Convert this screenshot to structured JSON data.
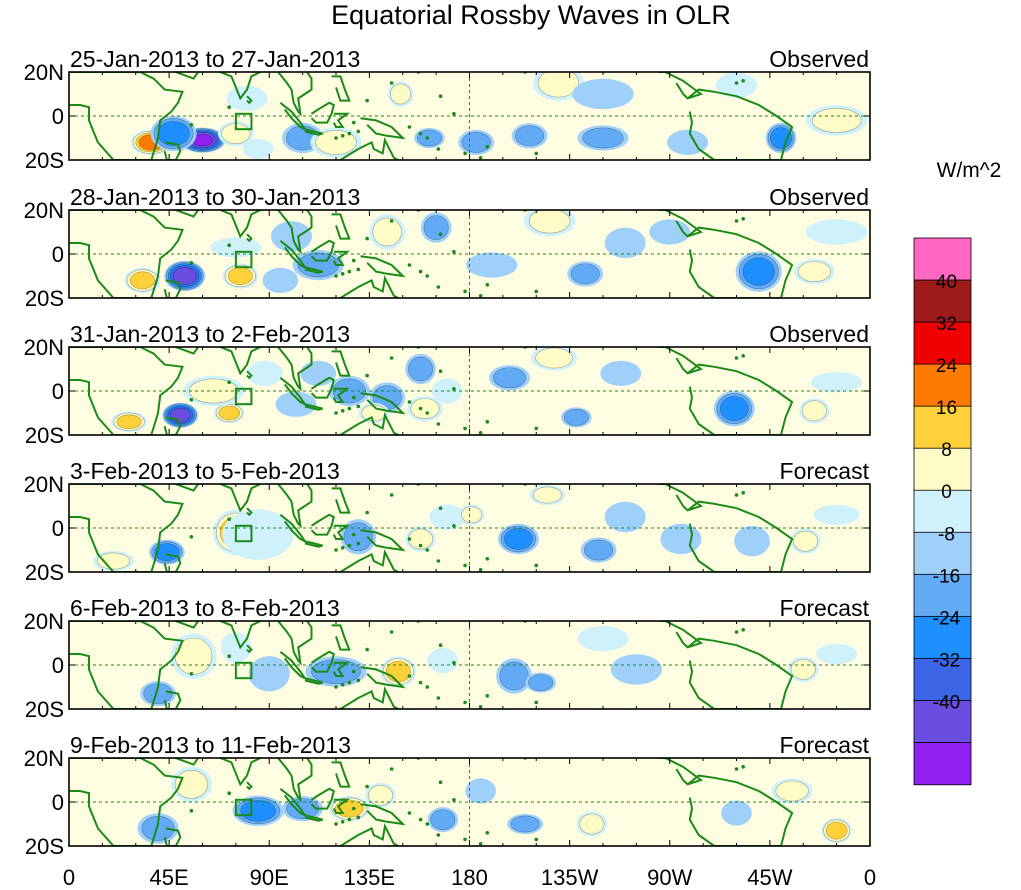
{
  "chart_data": {
    "type": "heatmap",
    "title": "Equatorial Rossby Waves in OLR",
    "colorbar_label": "W/m^2",
    "colorbar_ticks": [
      "40",
      "32",
      "24",
      "16",
      "8",
      "0",
      "-8",
      "-16",
      "-24",
      "-32",
      "-40"
    ],
    "colorbar_levels": [
      -48,
      -40,
      -32,
      -24,
      -16,
      -8,
      0,
      8,
      16,
      24,
      32,
      40,
      48
    ],
    "colors": [
      "#8f20f0",
      "#6b4ee0",
      "#3d66e6",
      "#1e8fff",
      "#63aaf5",
      "#9fd0fa",
      "#cff1fc",
      "#fffbc6",
      "#fed13a",
      "#ff7a00",
      "#f00000",
      "#9e1a1a",
      "#ff67c0"
    ],
    "x_ticks": [
      "0",
      "45E",
      "90E",
      "135E",
      "180",
      "135W",
      "90W",
      "45W",
      "0"
    ],
    "x_tick_values": [
      0,
      45,
      90,
      135,
      180,
      225,
      270,
      315,
      360
    ],
    "y_ticks": [
      "20N",
      "0",
      "20S"
    ],
    "y_tick_values": [
      20,
      0,
      -20
    ],
    "xlim": [
      0,
      360
    ],
    "ylim": [
      -20,
      20
    ],
    "panels": [
      {
        "dates": "25-Jan-2013 to 27-Jan-2013",
        "status": "Observed",
        "blobs": [
          [
            37,
            -12,
            8,
            5,
            32
          ],
          [
            60,
            -11,
            9,
            5,
            -44
          ],
          [
            47,
            -8,
            9,
            7,
            -24
          ],
          [
            75,
            -8,
            7,
            5,
            16
          ],
          [
            85,
            -15,
            6,
            4,
            8
          ],
          [
            80,
            8,
            8,
            5,
            8
          ],
          [
            105,
            -10,
            8,
            6,
            -16
          ],
          [
            120,
            -12,
            10,
            6,
            16
          ],
          [
            149,
            10,
            5,
            5,
            16
          ],
          [
            162,
            -10,
            6,
            4,
            -16
          ],
          [
            183,
            -12,
            7,
            5,
            -16
          ],
          [
            207,
            -9,
            7,
            5,
            -16
          ],
          [
            220,
            15,
            10,
            7,
            16
          ],
          [
            240,
            10,
            12,
            6,
            -8
          ],
          [
            240,
            -10,
            10,
            5,
            -16
          ],
          [
            278,
            -12,
            8,
            5,
            -8
          ],
          [
            300,
            14,
            8,
            5,
            8
          ],
          [
            320,
            -10,
            6,
            6,
            -24
          ],
          [
            345,
            -2,
            12,
            6,
            16
          ]
        ]
      },
      {
        "dates": "28-Jan-2013 to 30-Jan-2013",
        "status": "Observed",
        "blobs": [
          [
            33,
            -12,
            7,
            5,
            24
          ],
          [
            52,
            -10,
            8,
            6,
            -40
          ],
          [
            77,
            -10,
            7,
            5,
            24
          ],
          [
            75,
            3,
            10,
            4,
            8
          ],
          [
            95,
            -12,
            7,
            5,
            -8
          ],
          [
            100,
            8,
            8,
            6,
            -8
          ],
          [
            112,
            -5,
            10,
            6,
            -16
          ],
          [
            143,
            10,
            7,
            7,
            16
          ],
          [
            165,
            12,
            6,
            6,
            -16
          ],
          [
            190,
            -5,
            10,
            5,
            -8
          ],
          [
            216,
            15,
            10,
            6,
            16
          ],
          [
            232,
            -9,
            7,
            5,
            -16
          ],
          [
            250,
            5,
            8,
            6,
            -8
          ],
          [
            270,
            10,
            8,
            5,
            -8
          ],
          [
            310,
            -8,
            9,
            8,
            -24
          ],
          [
            335,
            -8,
            8,
            5,
            16
          ],
          [
            345,
            10,
            12,
            5,
            8
          ]
        ]
      },
      {
        "dates": "31-Jan-2013 to 2-Feb-2013",
        "status": "Observed",
        "blobs": [
          [
            27,
            -14,
            7,
            4,
            24
          ],
          [
            50,
            -11,
            7,
            5,
            -40
          ],
          [
            72,
            -10,
            6,
            4,
            24
          ],
          [
            65,
            0,
            12,
            6,
            16
          ],
          [
            88,
            8,
            7,
            5,
            8
          ],
          [
            102,
            -6,
            8,
            5,
            -8
          ],
          [
            112,
            8,
            7,
            5,
            -8
          ],
          [
            126,
            0,
            8,
            6,
            -16
          ],
          [
            143,
            -3,
            7,
            6,
            -16
          ],
          [
            137,
            -10,
            6,
            4,
            16
          ],
          [
            158,
            10,
            6,
            6,
            -16
          ],
          [
            160,
            -8,
            7,
            5,
            16
          ],
          [
            170,
            0,
            6,
            5,
            8
          ],
          [
            198,
            6,
            8,
            5,
            -16
          ],
          [
            218,
            15,
            9,
            5,
            16
          ],
          [
            228,
            -12,
            6,
            4,
            -16
          ],
          [
            248,
            8,
            8,
            5,
            -8
          ],
          [
            299,
            -8,
            8,
            7,
            -24
          ],
          [
            335,
            -9,
            6,
            5,
            16
          ],
          [
            345,
            4,
            10,
            4,
            8
          ]
        ]
      },
      {
        "dates": "3-Feb-2013 to 5-Feb-2013",
        "status": "Forecast",
        "blobs": [
          [
            20,
            -15,
            8,
            4,
            16
          ],
          [
            44,
            -11,
            7,
            5,
            -24
          ],
          [
            75,
            -2,
            9,
            9,
            24
          ],
          [
            85,
            -3,
            14,
            10,
            8
          ],
          [
            130,
            -4,
            7,
            7,
            -16
          ],
          [
            158,
            -5,
            6,
            5,
            16
          ],
          [
            170,
            5,
            7,
            5,
            8
          ],
          [
            181,
            6,
            5,
            4,
            16
          ],
          [
            202,
            -5,
            8,
            6,
            -24
          ],
          [
            215,
            15,
            7,
            4,
            16
          ],
          [
            238,
            -10,
            7,
            5,
            -16
          ],
          [
            250,
            5,
            8,
            6,
            -8
          ],
          [
            275,
            -5,
            8,
            6,
            -8
          ],
          [
            307,
            -6,
            7,
            6,
            -8
          ],
          [
            331,
            -6,
            6,
            5,
            16
          ],
          [
            345,
            6,
            9,
            4,
            8
          ]
        ]
      },
      {
        "dates": "6-Feb-2013 to 8-Feb-2013",
        "status": "Forecast",
        "blobs": [
          [
            40,
            -13,
            7,
            5,
            -16
          ],
          [
            56,
            4,
            9,
            9,
            16
          ],
          [
            75,
            8,
            6,
            6,
            8
          ],
          [
            90,
            -4,
            8,
            7,
            -8
          ],
          [
            120,
            -3,
            12,
            6,
            -16
          ],
          [
            148,
            -3,
            7,
            6,
            24
          ],
          [
            168,
            2,
            6,
            5,
            8
          ],
          [
            200,
            -5,
            7,
            7,
            -16
          ],
          [
            212,
            -8,
            6,
            4,
            -16
          ],
          [
            255,
            -2,
            10,
            6,
            -8
          ],
          [
            330,
            -2,
            6,
            5,
            16
          ],
          [
            345,
            5,
            8,
            4,
            8
          ],
          [
            240,
            12,
            10,
            5,
            8
          ]
        ]
      },
      {
        "dates": "9-Feb-2013 to 11-Feb-2013",
        "status": "Forecast",
        "blobs": [
          [
            40,
            -12,
            8,
            6,
            -16
          ],
          [
            55,
            8,
            8,
            7,
            16
          ],
          [
            85,
            -4,
            10,
            6,
            -24
          ],
          [
            105,
            -3,
            8,
            5,
            -16
          ],
          [
            126,
            -3,
            8,
            5,
            24
          ],
          [
            140,
            3,
            6,
            5,
            16
          ],
          [
            168,
            -8,
            6,
            5,
            -16
          ],
          [
            185,
            5,
            6,
            5,
            -8
          ],
          [
            205,
            -10,
            7,
            4,
            -16
          ],
          [
            235,
            -10,
            6,
            5,
            16
          ],
          [
            300,
            -5,
            6,
            5,
            -8
          ],
          [
            325,
            5,
            8,
            5,
            16
          ],
          [
            345,
            -13,
            6,
            5,
            24
          ]
        ]
      }
    ]
  }
}
